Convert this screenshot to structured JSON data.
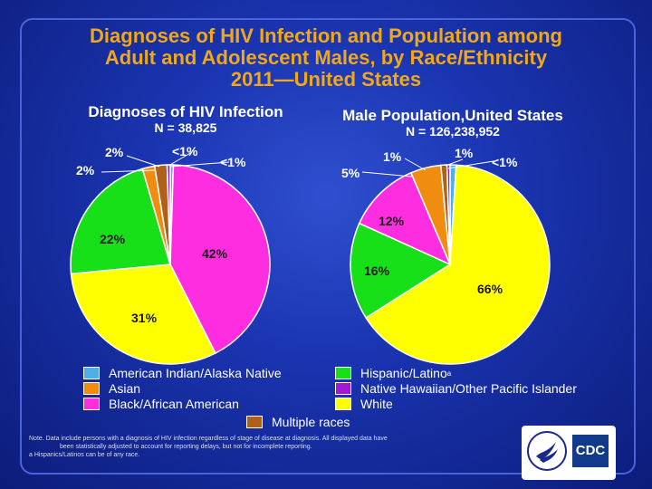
{
  "title": {
    "line1": "Diagnoses of HIV Infection and Population among",
    "line2": "Adult and Adolescent Males, by Race/Ethnicity",
    "line3": "2011—United States"
  },
  "colors": {
    "american_indian": "#4fb0e8",
    "asian": "#f08c10",
    "black": "#ff2de0",
    "hispanic": "#18e018",
    "nhopi": "#a018d8",
    "white": "#ffff00",
    "multiple": "#b06018"
  },
  "chart_data": [
    {
      "type": "pie",
      "title": "Diagnoses of HIV Infection",
      "n_label": "N = 38,825",
      "slices": [
        {
          "category": "American Indian/Alaska Native",
          "value": 0.5,
          "label": "<1%",
          "color_key": "american_indian"
        },
        {
          "category": "Black/African American",
          "value": 42,
          "label": "42%",
          "color_key": "black"
        },
        {
          "category": "White",
          "value": 31,
          "label": "31%",
          "color_key": "white"
        },
        {
          "category": "Hispanic/Latino",
          "value": 22,
          "label": "22%",
          "color_key": "hispanic"
        },
        {
          "category": "Asian",
          "value": 2,
          "label": "2%",
          "color_key": "asian"
        },
        {
          "category": "Multiple races",
          "value": 2,
          "label": "2%",
          "color_key": "multiple"
        },
        {
          "category": "Native Hawaiian/Other Pacific Islander",
          "value": 0.5,
          "label": "<1%",
          "color_key": "nhopi"
        }
      ]
    },
    {
      "type": "pie",
      "title": "Male Population,United States",
      "n_label": "N = 126,238,952",
      "slices": [
        {
          "category": "American Indian/Alaska Native",
          "value": 1,
          "label": "1%",
          "color_key": "american_indian"
        },
        {
          "category": "White",
          "value": 66,
          "label": "66%",
          "color_key": "white"
        },
        {
          "category": "Hispanic/Latino",
          "value": 16,
          "label": "16%",
          "color_key": "hispanic"
        },
        {
          "category": "Black/African American",
          "value": 12,
          "label": "12%",
          "color_key": "black"
        },
        {
          "category": "Asian",
          "value": 5,
          "label": "5%",
          "color_key": "asian"
        },
        {
          "category": "Multiple races",
          "value": 1,
          "label": "1%",
          "color_key": "multiple"
        },
        {
          "category": "Native Hawaiian/Other Pacific Islander",
          "value": 0.5,
          "label": "<1%",
          "color_key": "nhopi"
        }
      ]
    }
  ],
  "legend": {
    "american_indian": "American Indian/Alaska Native",
    "asian": "Asian",
    "black": "Black/African American",
    "hispanic": "Hispanic/Latino",
    "hispanic_sup": "a",
    "nhopi": "Native Hawaiian/Other Pacific Islander",
    "white": "White",
    "multiple": "Multiple races"
  },
  "note": {
    "line1": "Note. Data include persons with a diagnosis of HIV infection regardless of stage of disease at diagnosis. All displayed data have",
    "line2": "been statistically adjusted to account for reporting delays, but not for incomplete reporting.",
    "line3": "a Hispanics/Latinos can be of any race."
  },
  "logo": {
    "text": "CDC"
  }
}
